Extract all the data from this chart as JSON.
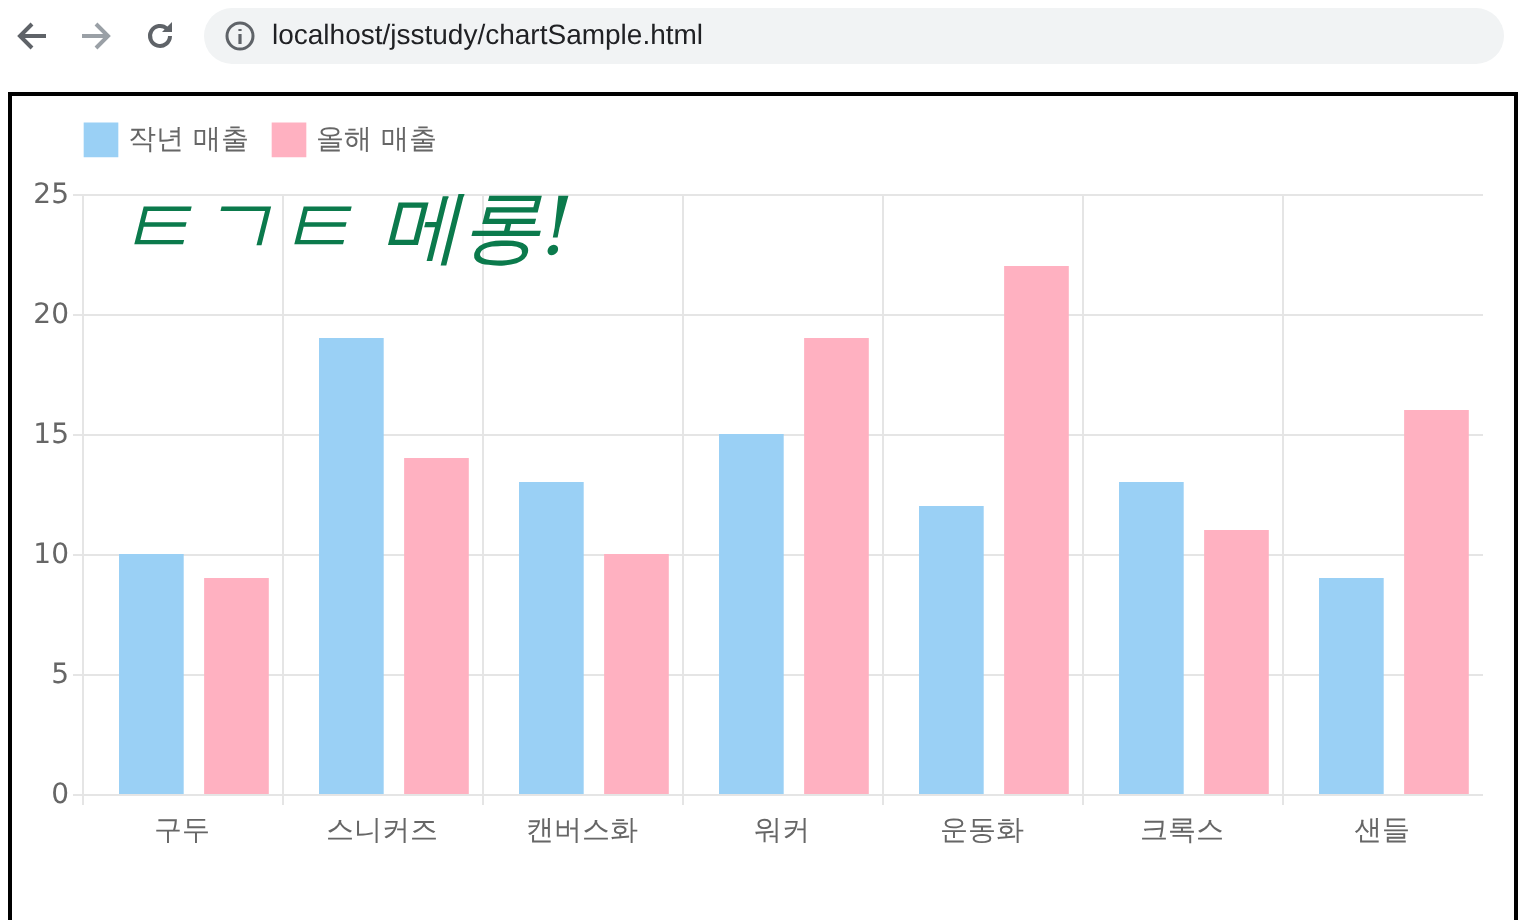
{
  "chart_data": {
    "type": "bar",
    "categories": [
      "구두",
      "스니커즈",
      "캔버스화",
      "워커",
      "운동화",
      "크록스",
      "샌들"
    ],
    "series": [
      {
        "name": "작년 매출",
        "color": "#9ad0f5",
        "values": [
          10,
          19,
          13,
          15,
          12,
          13,
          9
        ]
      },
      {
        "name": "올해 매출",
        "color": "#ffb1c1",
        "values": [
          9,
          14,
          10,
          19,
          22,
          11,
          16
        ]
      }
    ],
    "ylim": [
      0,
      25
    ],
    "yticks": [
      0,
      5,
      10,
      15,
      20,
      25
    ],
    "grid": true,
    "legend": "top",
    "annotations": [
      "ㅌㄱㅌ 메롱!",
      "localhost/jsstudy/chartSample.html"
    ]
  }
}
